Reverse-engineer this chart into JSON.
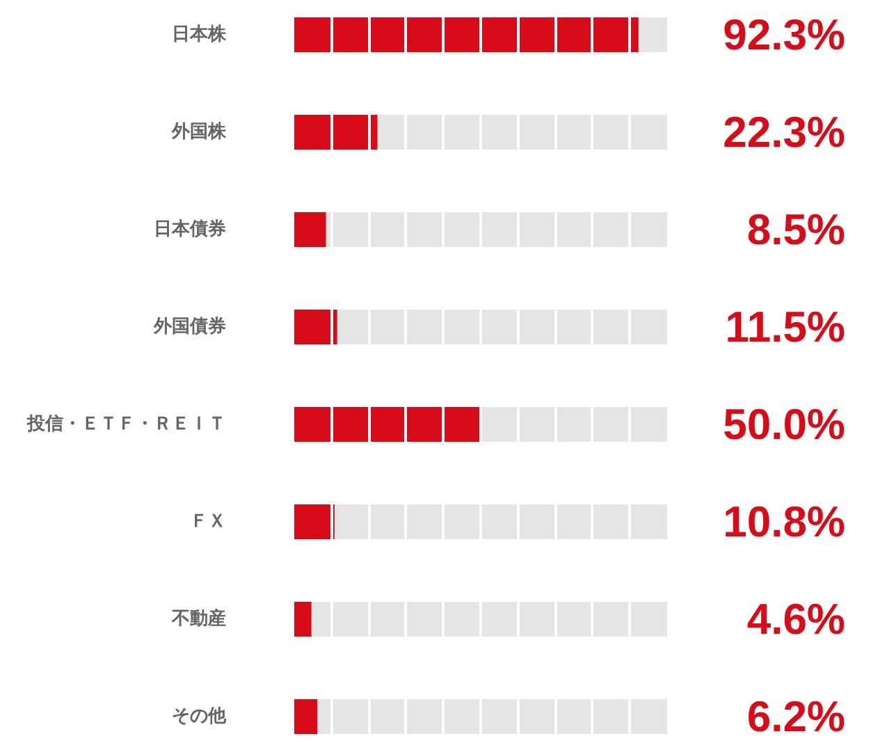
{
  "chart_data": {
    "type": "bar",
    "orientation": "horizontal",
    "categories": [
      "日本株",
      "外国株",
      "日本債券",
      "外国債券",
      "投信・ＥＴＦ・ＲＥＩＴ",
      "ＦＸ",
      "不動産",
      "その他"
    ],
    "values": [
      92.3,
      22.3,
      8.5,
      11.5,
      50.0,
      10.8,
      4.6,
      6.2
    ],
    "color": "#d70c18",
    "value_labels": [
      "92.3%",
      "22.3%",
      "8.5%",
      "11.5%",
      "50.0%",
      "10.8%",
      "4.6%",
      "6.2%"
    ],
    "xlim": [
      0,
      100
    ],
    "xticks": [
      {
        "value": 10,
        "label": null
      },
      {
        "value": 20,
        "label": null
      },
      {
        "value": 30,
        "label": null
      },
      {
        "value": 40,
        "label": null
      },
      {
        "value": 50,
        "label": null
      },
      {
        "value": 60,
        "label": null
      },
      {
        "value": 70,
        "label": null
      },
      {
        "value": 80,
        "label": null
      },
      {
        "value": 90,
        "label": null
      }
    ],
    "grid": "x",
    "tick_labels": "y"
  }
}
